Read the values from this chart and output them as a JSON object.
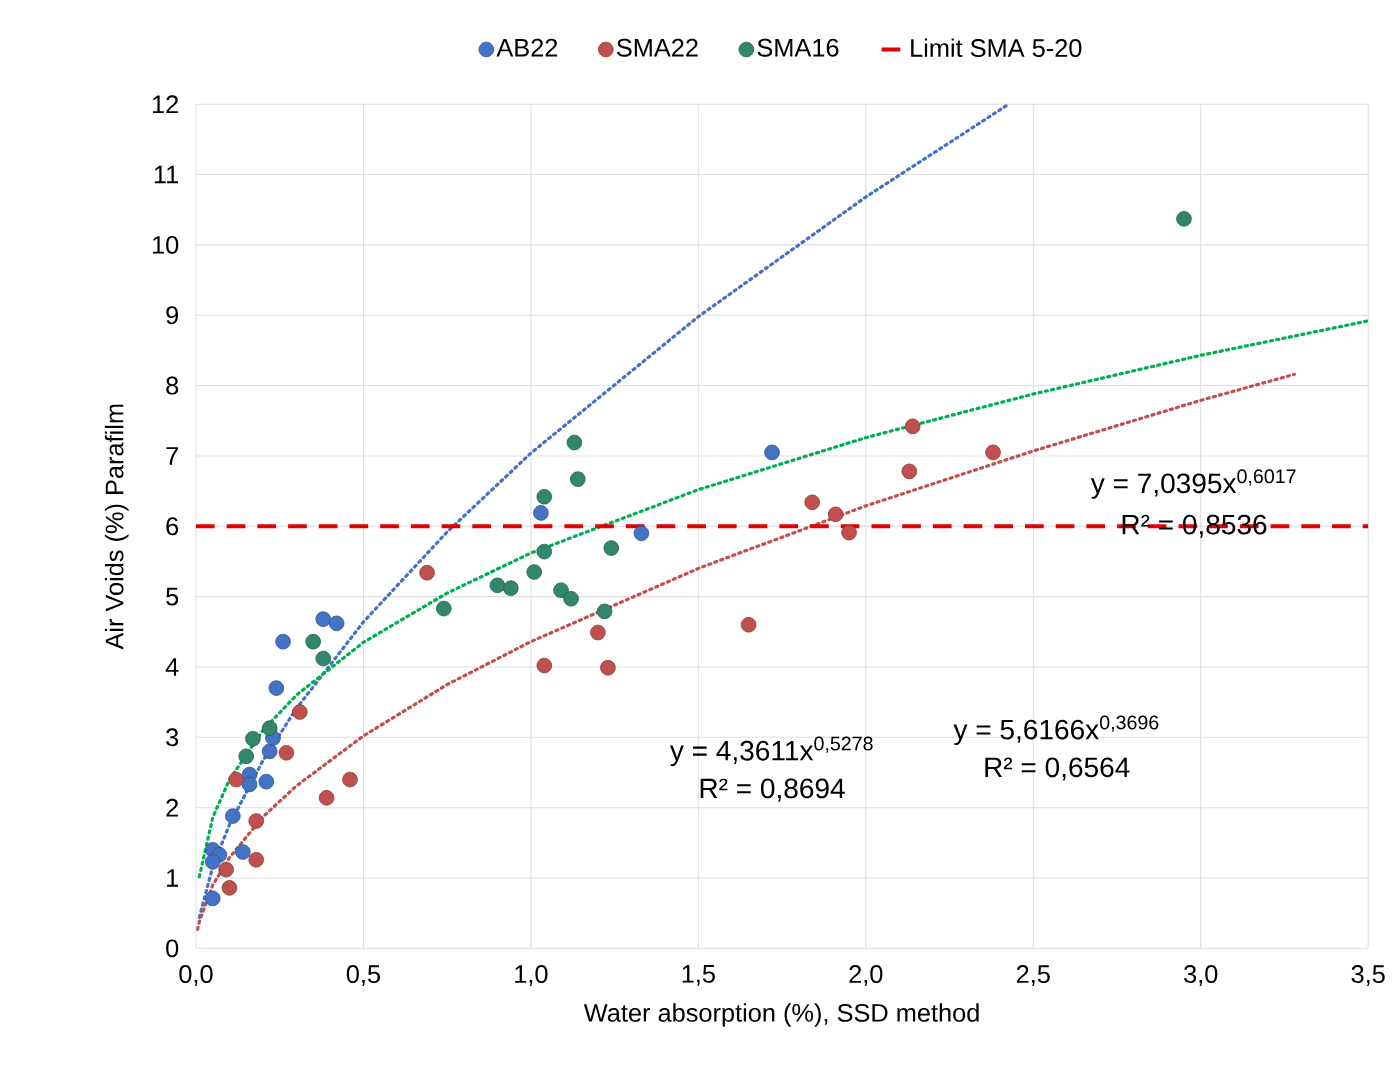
{
  "chart_data": {
    "type": "scatter",
    "xlabel": "Water absorption (%), SSD method",
    "ylabel": "Air Voids (%) Parafilm",
    "xlim": [
      0,
      3.5
    ],
    "ylim": [
      0,
      12
    ],
    "xticks": [
      {
        "value": 0,
        "label": "0,0"
      },
      {
        "value": 0.5,
        "label": "0,5"
      },
      {
        "value": 1,
        "label": "1,0"
      },
      {
        "value": 1.5,
        "label": "1,5"
      },
      {
        "value": 2,
        "label": "2,0"
      },
      {
        "value": 2.5,
        "label": "2,5"
      },
      {
        "value": 3,
        "label": "3,0"
      },
      {
        "value": 3.5,
        "label": "3,5"
      }
    ],
    "yticks": [
      0,
      1,
      2,
      3,
      4,
      5,
      6,
      7,
      8,
      9,
      10,
      11,
      12
    ],
    "grid": true,
    "legend": "top",
    "marker": "circle",
    "series": [
      {
        "type": "line",
        "color": "#4472c4",
        "line_style": "dotted",
        "marker": "none",
        "x": [
          0.01,
          0.05,
          0.1,
          0.2,
          0.3,
          0.5,
          0.75,
          1.0,
          1.5,
          2.0,
          2.42
        ],
        "values": [
          0.44,
          1.16,
          1.76,
          2.67,
          3.41,
          4.64,
          5.92,
          7.04,
          8.98,
          10.68,
          11.98
        ]
      },
      {
        "type": "line",
        "color": "#00b050",
        "line_style": "dotted",
        "marker": "none",
        "x": [
          0.01,
          0.05,
          0.1,
          0.2,
          0.3,
          0.5,
          0.75,
          1.0,
          1.5,
          2.0,
          2.5,
          3.0,
          3.5
        ],
        "values": [
          1.02,
          1.86,
          2.4,
          3.1,
          3.6,
          4.35,
          5.05,
          5.62,
          6.52,
          7.26,
          7.88,
          8.43,
          8.92
        ]
      },
      {
        "type": "line",
        "color": "#c0504d",
        "line_style": "dotted",
        "marker": "none",
        "x": [
          0.005,
          0.01,
          0.05,
          0.1,
          0.2,
          0.3,
          0.5,
          0.75,
          1.0,
          1.5,
          2.0,
          2.5,
          3.0,
          3.28
        ],
        "values": [
          0.27,
          0.38,
          0.9,
          1.29,
          1.87,
          2.31,
          3.02,
          3.75,
          4.36,
          5.4,
          6.29,
          7.07,
          7.79,
          8.16
        ]
      },
      {
        "name": "AB22",
        "color": "#4472c4",
        "x": [
          0.05,
          0.11,
          0.14,
          0.05,
          0.07,
          0.05,
          0.16,
          0.16,
          0.21,
          0.22,
          0.23,
          0.24,
          0.26,
          0.38,
          0.42,
          1.03,
          1.33,
          1.72
        ],
        "values": [
          0.71,
          1.88,
          1.37,
          1.4,
          1.33,
          1.23,
          2.47,
          2.33,
          2.37,
          2.8,
          2.99,
          3.7,
          4.36,
          4.68,
          4.62,
          6.19,
          5.9,
          7.05
        ]
      },
      {
        "name": "SMA22",
        "color": "#c0504d",
        "x": [
          0.1,
          0.09,
          0.12,
          0.18,
          0.18,
          0.27,
          0.31,
          0.39,
          0.46,
          0.69,
          1.04,
          1.2,
          1.23,
          1.65,
          1.84,
          1.91,
          1.95,
          2.13,
          2.14,
          2.38
        ],
        "values": [
          0.86,
          1.12,
          2.4,
          1.81,
          1.26,
          2.78,
          3.36,
          2.14,
          2.4,
          5.34,
          4.02,
          4.49,
          3.99,
          4.6,
          6.34,
          6.17,
          5.91,
          6.78,
          7.42,
          7.05
        ]
      },
      {
        "name": "SMA16",
        "color": "#31866b",
        "x": [
          0.15,
          0.17,
          0.22,
          0.35,
          0.38,
          0.74,
          0.9,
          0.94,
          1.01,
          1.04,
          1.04,
          1.09,
          1.12,
          1.13,
          1.14,
          1.22,
          1.24,
          2.95
        ],
        "values": [
          2.73,
          2.98,
          3.13,
          4.36,
          4.12,
          4.83,
          5.16,
          5.12,
          5.35,
          5.64,
          6.42,
          5.09,
          4.97,
          7.19,
          6.67,
          4.79,
          5.69,
          10.37
        ]
      }
    ],
    "ref_lines": [
      {
        "axis": "y",
        "value": 6,
        "label": "Limit SMA 5-20",
        "color": "#e00000",
        "line_style": "dashed"
      }
    ],
    "annotations": [
      "y = 7,0395x$^{0,6017}$",
      "R² = 0,8536",
      "y = 4,3611x$^{0,5278}$",
      "R² = 0,8694",
      "y = 5,6166x$^{0,3696}$",
      "R² = 0,6564"
    ]
  }
}
